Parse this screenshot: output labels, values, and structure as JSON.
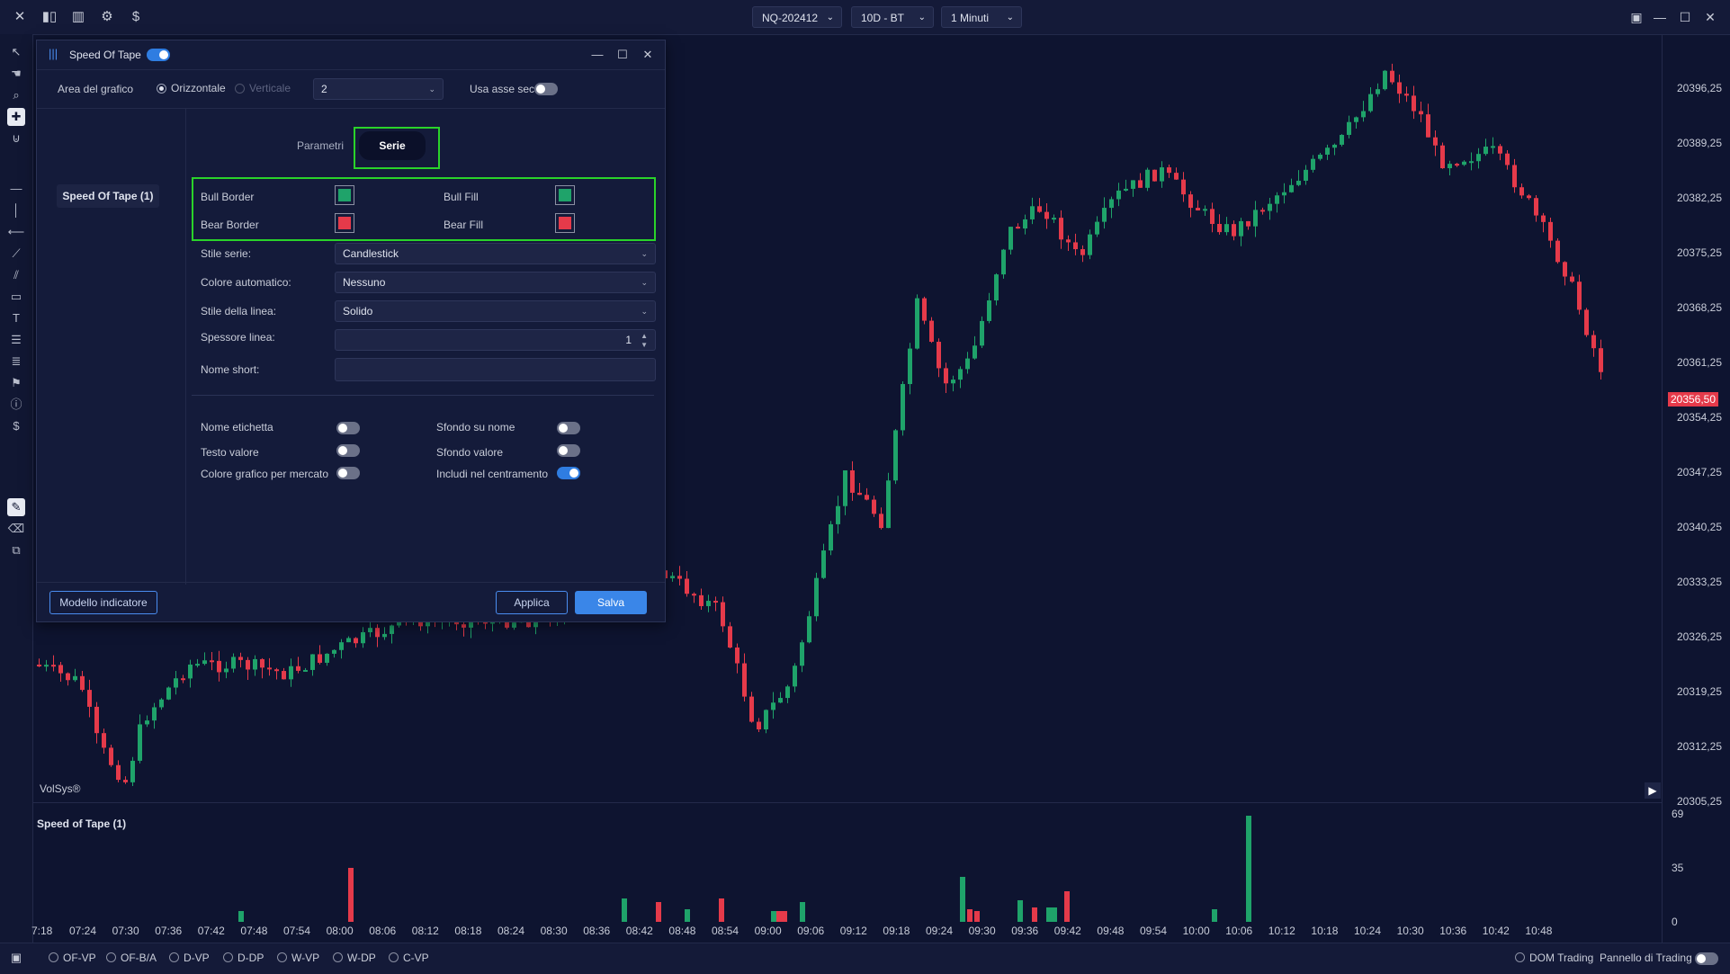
{
  "topbar": {
    "icons": [
      "close-icon",
      "candles-icon",
      "bars-icon",
      "gear-icon",
      "dollar-icon"
    ],
    "symbol": "NQ-202412",
    "range": "10D - BT",
    "timeframe": "1 Minuti"
  },
  "price_labels": [
    "20396,25",
    "20389,25",
    "20382,25",
    "20375,25",
    "20368,25",
    "20361,25",
    "20354,25",
    "20347,25",
    "20340,25",
    "20333,25",
    "20326,25",
    "20319,25",
    "20312,25",
    "20305,25"
  ],
  "current_price": "20356,50",
  "time_labels": [
    "7:18",
    "07:24",
    "07:30",
    "07:36",
    "07:42",
    "07:48",
    "07:54",
    "08:00",
    "08:06",
    "08:12",
    "08:18",
    "08:24",
    "08:30",
    "08:36",
    "08:42",
    "08:48",
    "08:54",
    "09:00",
    "09:06",
    "09:12",
    "09:18",
    "09:24",
    "09:30",
    "09:36",
    "09:42",
    "09:48",
    "09:54",
    "10:00",
    "10:06",
    "10:12",
    "10:18",
    "10:24",
    "10:30",
    "10:36",
    "10:42",
    "10:48"
  ],
  "watermark": "VolSys®",
  "lower_panel": {
    "title": "Speed of Tape (1)",
    "axis_labels": [
      "69",
      "35",
      "0"
    ]
  },
  "colors": {
    "bull": "#1fa36a",
    "bear": "#e53a4a",
    "accent": "#3a86e8",
    "highlight": "#2ad32a"
  },
  "dialog": {
    "title": "Speed Of Tape",
    "area_label": "Area del grafico",
    "horizontal": "Orizzontale",
    "vertical": "Verticale",
    "area_value": "2",
    "secondary_axis": "Usa asse sec.",
    "tabs": [
      "Parametri",
      "Serie"
    ],
    "side_item": "Speed Of Tape (1)",
    "colors": {
      "bull_border": "Bull Border",
      "bull_fill": "Bull Fill",
      "bear_border": "Bear Border",
      "bear_fill": "Bear Fill"
    },
    "fields": [
      {
        "label": "Stile serie:",
        "value": "Candlestick"
      },
      {
        "label": "Colore automatico:",
        "value": "Nessuno"
      },
      {
        "label": "Stile della linea:",
        "value": "Solido"
      },
      {
        "label": "Spessore linea:",
        "value": "1"
      },
      {
        "label": "Nome short:",
        "value": ""
      }
    ],
    "toggles": [
      {
        "label": "Nome etichetta",
        "on": false
      },
      {
        "label": "Sfondo su nome",
        "on": false
      },
      {
        "label": "Testo valore",
        "on": false
      },
      {
        "label": "Sfondo valore",
        "on": false
      },
      {
        "label": "Colore grafico per mercato",
        "on": false
      },
      {
        "label": "Includi nel centramento",
        "on": true
      }
    ],
    "template_button": "Modello indicatore",
    "apply_button": "Applica",
    "save_button": "Salva"
  },
  "bottombar": {
    "items": [
      "OF-VP",
      "OF-B/A",
      "D-VP",
      "D-DP",
      "W-VP",
      "W-DP",
      "C-VP"
    ],
    "dom": "DOM Trading",
    "panel": "Pannello di Trading"
  }
}
